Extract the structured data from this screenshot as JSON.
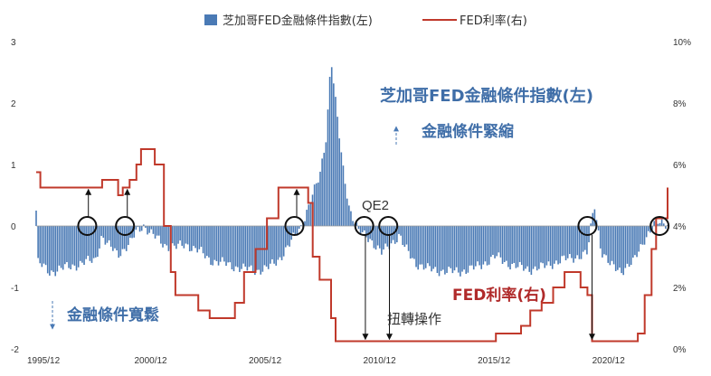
{
  "chart_data": {
    "type": "bar+line",
    "legend": {
      "bar_label": "芝加哥FED金融條件指數(左)",
      "line_label": "FED利率(右)"
    },
    "left_axis": {
      "range": [
        -2,
        3
      ],
      "ticks": [
        "3",
        "2",
        "1",
        "0",
        "-1",
        "-2"
      ]
    },
    "right_axis": {
      "range": [
        0,
        10
      ],
      "ticks": [
        "10%",
        "8%",
        "6%",
        "4%",
        "2%",
        "0%"
      ]
    },
    "x_axis": {
      "start": 1995.92,
      "end": 2023.5,
      "ticks": [
        {
          "label": "1995/12",
          "t": 1995.92
        },
        {
          "label": "2000/12",
          "t": 2000.92
        },
        {
          "label": "2005/12",
          "t": 2005.92
        },
        {
          "label": "2010/12",
          "t": 2010.92
        },
        {
          "label": "2015/12",
          "t": 2015.92
        },
        {
          "label": "2020/12",
          "t": 2020.92
        }
      ]
    },
    "nfci_series": [
      [
        1995.92,
        0.25
      ],
      [
        1996.0,
        -0.6
      ],
      [
        1996.5,
        -0.75
      ],
      [
        1997.0,
        -0.7
      ],
      [
        1997.5,
        -0.65
      ],
      [
        1998.0,
        -0.6
      ],
      [
        1998.5,
        -0.55
      ],
      [
        1998.8,
        -0.15
      ],
      [
        1999.0,
        -0.3
      ],
      [
        1999.5,
        -0.45
      ],
      [
        2000.0,
        -0.3
      ],
      [
        2000.3,
        -0.1
      ],
      [
        2000.6,
        0.02
      ],
      [
        2001.0,
        -0.15
      ],
      [
        2001.5,
        -0.3
      ],
      [
        2002.0,
        -0.35
      ],
      [
        2002.5,
        -0.3
      ],
      [
        2003.0,
        -0.4
      ],
      [
        2003.5,
        -0.55
      ],
      [
        2004.0,
        -0.6
      ],
      [
        2004.5,
        -0.65
      ],
      [
        2005.0,
        -0.7
      ],
      [
        2005.5,
        -0.72
      ],
      [
        2006.0,
        -0.7
      ],
      [
        2006.5,
        -0.55
      ],
      [
        2007.0,
        -0.3
      ],
      [
        2007.5,
        0.0
      ],
      [
        2007.8,
        0.3
      ],
      [
        2008.0,
        0.5
      ],
      [
        2008.3,
        0.8
      ],
      [
        2008.6,
        1.5
      ],
      [
        2008.8,
        2.75
      ],
      [
        2009.0,
        2.0
      ],
      [
        2009.3,
        1.0
      ],
      [
        2009.6,
        0.3
      ],
      [
        2010.0,
        -0.1
      ],
      [
        2010.5,
        -0.2
      ],
      [
        2010.8,
        -0.35
      ],
      [
        2011.0,
        -0.45
      ],
      [
        2011.5,
        -0.25
      ],
      [
        2011.8,
        -0.15
      ],
      [
        2012.0,
        -0.35
      ],
      [
        2012.5,
        -0.6
      ],
      [
        2013.0,
        -0.7
      ],
      [
        2013.5,
        -0.72
      ],
      [
        2014.0,
        -0.75
      ],
      [
        2014.5,
        -0.73
      ],
      [
        2015.0,
        -0.7
      ],
      [
        2015.5,
        -0.6
      ],
      [
        2016.0,
        -0.5
      ],
      [
        2016.5,
        -0.6
      ],
      [
        2017.0,
        -0.68
      ],
      [
        2017.5,
        -0.7
      ],
      [
        2018.0,
        -0.68
      ],
      [
        2018.5,
        -0.6
      ],
      [
        2019.0,
        -0.55
      ],
      [
        2019.5,
        -0.5
      ],
      [
        2020.0,
        -0.45
      ],
      [
        2020.3,
        0.38
      ],
      [
        2020.6,
        -0.4
      ],
      [
        2021.0,
        -0.65
      ],
      [
        2021.5,
        -0.72
      ],
      [
        2022.0,
        -0.6
      ],
      [
        2022.5,
        -0.2
      ],
      [
        2023.0,
        0.05
      ],
      [
        2023.5,
        0.05
      ]
    ],
    "fed_rate": [
      [
        1995.92,
        5.75
      ],
      [
        1996.1,
        5.25
      ],
      [
        1998.7,
        5.25
      ],
      [
        1998.8,
        5.5
      ],
      [
        1999.0,
        5.5
      ],
      [
        1999.5,
        5.0
      ],
      [
        1999.7,
        5.25
      ],
      [
        2000.0,
        5.5
      ],
      [
        2000.3,
        6.0
      ],
      [
        2000.5,
        6.5
      ],
      [
        2001.0,
        6.5
      ],
      [
        2001.1,
        6.0
      ],
      [
        2001.5,
        4.0
      ],
      [
        2001.8,
        2.5
      ],
      [
        2002.0,
        1.75
      ],
      [
        2003.0,
        1.25
      ],
      [
        2003.5,
        1.0
      ],
      [
        2004.4,
        1.0
      ],
      [
        2004.6,
        1.5
      ],
      [
        2005.0,
        2.5
      ],
      [
        2005.5,
        3.25
      ],
      [
        2006.0,
        4.25
      ],
      [
        2006.5,
        5.25
      ],
      [
        2007.6,
        5.25
      ],
      [
        2007.8,
        4.75
      ],
      [
        2008.0,
        3.0
      ],
      [
        2008.3,
        2.25
      ],
      [
        2008.8,
        1.0
      ],
      [
        2009.0,
        0.25
      ],
      [
        2015.9,
        0.25
      ],
      [
        2016.0,
        0.5
      ],
      [
        2016.9,
        0.5
      ],
      [
        2017.1,
        0.75
      ],
      [
        2017.5,
        1.25
      ],
      [
        2018.0,
        1.5
      ],
      [
        2018.5,
        2.0
      ],
      [
        2019.0,
        2.5
      ],
      [
        2019.5,
        2.5
      ],
      [
        2019.7,
        2.0
      ],
      [
        2020.0,
        1.75
      ],
      [
        2020.2,
        0.25
      ],
      [
        2022.0,
        0.25
      ],
      [
        2022.2,
        0.5
      ],
      [
        2022.5,
        1.75
      ],
      [
        2022.8,
        3.25
      ],
      [
        2023.0,
        4.25
      ],
      [
        2023.5,
        5.25
      ]
    ],
    "circles_t": [
      1998.15,
      1999.8,
      2007.2,
      2010.25,
      2011.3,
      2020.0,
      2023.15
    ],
    "arrows_up_t": [
      1998.2,
      1999.9,
      2007.3
    ],
    "arrows_down_t": [
      2010.3,
      2011.35,
      2020.2
    ],
    "annotations": {
      "nfci_title": "芝加哥FED金融條件指數(左)",
      "tightening": "金融條件緊縮",
      "easing": "金融條件寬鬆",
      "qe2": "QE2",
      "twist": "扭轉操作",
      "fed_label": "FED利率(右)"
    },
    "colors": {
      "bar": "#4a7ab5",
      "line": "#c0392b",
      "circle": "#111111",
      "arrow": "#111111",
      "blue_text": "#3f6ea8",
      "red_text": "#b02a2a"
    }
  }
}
